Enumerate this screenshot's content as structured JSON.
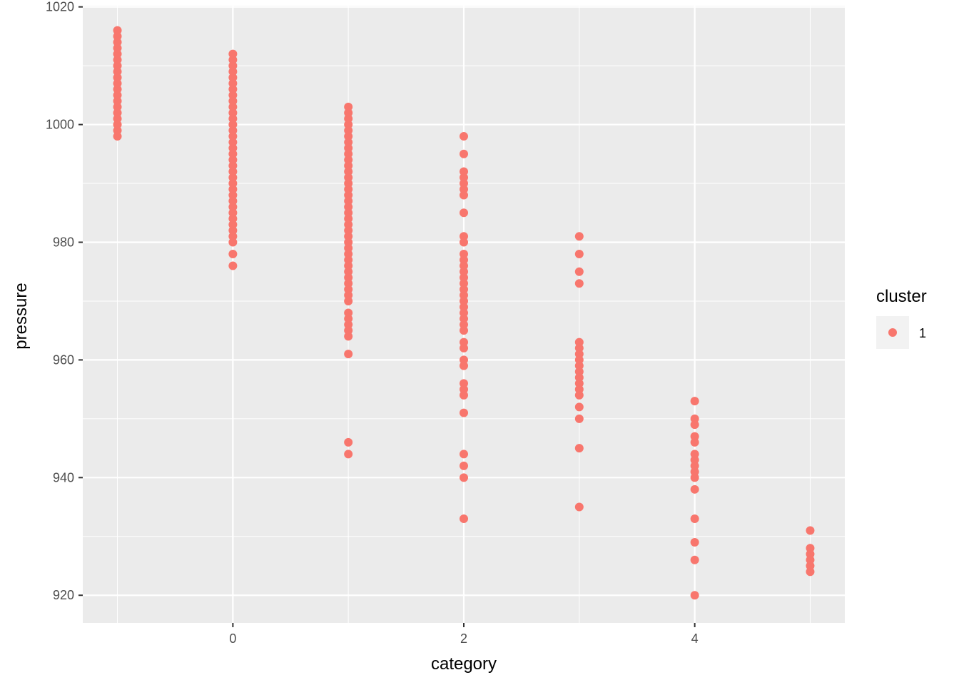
{
  "chart_data": {
    "type": "scatter",
    "xlabel": "category",
    "ylabel": "pressure",
    "xlim": [
      -1.3,
      5.3
    ],
    "ylim": [
      915.3,
      1020.2
    ],
    "x_ticks": [
      0,
      2,
      4
    ],
    "y_ticks": [
      920,
      940,
      960,
      980,
      1000,
      1020
    ],
    "grid": true,
    "legend": {
      "title": "cluster",
      "position": "right",
      "entries": [
        "1"
      ]
    },
    "series": [
      {
        "name": "1",
        "color": "#F8766D",
        "points": [
          {
            "x": -1,
            "y": 998
          },
          {
            "x": -1,
            "y": 999
          },
          {
            "x": -1,
            "y": 1000
          },
          {
            "x": -1,
            "y": 1001
          },
          {
            "x": -1,
            "y": 1002
          },
          {
            "x": -1,
            "y": 1003
          },
          {
            "x": -1,
            "y": 1004
          },
          {
            "x": -1,
            "y": 1005
          },
          {
            "x": -1,
            "y": 1006
          },
          {
            "x": -1,
            "y": 1007
          },
          {
            "x": -1,
            "y": 1008
          },
          {
            "x": -1,
            "y": 1009
          },
          {
            "x": -1,
            "y": 1010
          },
          {
            "x": -1,
            "y": 1011
          },
          {
            "x": -1,
            "y": 1012
          },
          {
            "x": -1,
            "y": 1013
          },
          {
            "x": -1,
            "y": 1014
          },
          {
            "x": -1,
            "y": 1015
          },
          {
            "x": -1,
            "y": 1016
          },
          {
            "x": 0,
            "y": 976
          },
          {
            "x": 0,
            "y": 978
          },
          {
            "x": 0,
            "y": 980
          },
          {
            "x": 0,
            "y": 981
          },
          {
            "x": 0,
            "y": 982
          },
          {
            "x": 0,
            "y": 983
          },
          {
            "x": 0,
            "y": 984
          },
          {
            "x": 0,
            "y": 985
          },
          {
            "x": 0,
            "y": 986
          },
          {
            "x": 0,
            "y": 987
          },
          {
            "x": 0,
            "y": 988
          },
          {
            "x": 0,
            "y": 989
          },
          {
            "x": 0,
            "y": 990
          },
          {
            "x": 0,
            "y": 991
          },
          {
            "x": 0,
            "y": 992
          },
          {
            "x": 0,
            "y": 993
          },
          {
            "x": 0,
            "y": 994
          },
          {
            "x": 0,
            "y": 995
          },
          {
            "x": 0,
            "y": 996
          },
          {
            "x": 0,
            "y": 997
          },
          {
            "x": 0,
            "y": 998
          },
          {
            "x": 0,
            "y": 999
          },
          {
            "x": 0,
            "y": 1000
          },
          {
            "x": 0,
            "y": 1001
          },
          {
            "x": 0,
            "y": 1002
          },
          {
            "x": 0,
            "y": 1003
          },
          {
            "x": 0,
            "y": 1004
          },
          {
            "x": 0,
            "y": 1005
          },
          {
            "x": 0,
            "y": 1006
          },
          {
            "x": 0,
            "y": 1007
          },
          {
            "x": 0,
            "y": 1008
          },
          {
            "x": 0,
            "y": 1009
          },
          {
            "x": 0,
            "y": 1010
          },
          {
            "x": 0,
            "y": 1011
          },
          {
            "x": 0,
            "y": 1012
          },
          {
            "x": 1,
            "y": 944
          },
          {
            "x": 1,
            "y": 946
          },
          {
            "x": 1,
            "y": 961
          },
          {
            "x": 1,
            "y": 964
          },
          {
            "x": 1,
            "y": 965
          },
          {
            "x": 1,
            "y": 966
          },
          {
            "x": 1,
            "y": 967
          },
          {
            "x": 1,
            "y": 968
          },
          {
            "x": 1,
            "y": 970
          },
          {
            "x": 1,
            "y": 971
          },
          {
            "x": 1,
            "y": 972
          },
          {
            "x": 1,
            "y": 973
          },
          {
            "x": 1,
            "y": 974
          },
          {
            "x": 1,
            "y": 975
          },
          {
            "x": 1,
            "y": 976
          },
          {
            "x": 1,
            "y": 977
          },
          {
            "x": 1,
            "y": 978
          },
          {
            "x": 1,
            "y": 979
          },
          {
            "x": 1,
            "y": 980
          },
          {
            "x": 1,
            "y": 981
          },
          {
            "x": 1,
            "y": 982
          },
          {
            "x": 1,
            "y": 983
          },
          {
            "x": 1,
            "y": 984
          },
          {
            "x": 1,
            "y": 985
          },
          {
            "x": 1,
            "y": 986
          },
          {
            "x": 1,
            "y": 987
          },
          {
            "x": 1,
            "y": 988
          },
          {
            "x": 1,
            "y": 989
          },
          {
            "x": 1,
            "y": 990
          },
          {
            "x": 1,
            "y": 991
          },
          {
            "x": 1,
            "y": 992
          },
          {
            "x": 1,
            "y": 993
          },
          {
            "x": 1,
            "y": 994
          },
          {
            "x": 1,
            "y": 995
          },
          {
            "x": 1,
            "y": 996
          },
          {
            "x": 1,
            "y": 997
          },
          {
            "x": 1,
            "y": 998
          },
          {
            "x": 1,
            "y": 999
          },
          {
            "x": 1,
            "y": 1000
          },
          {
            "x": 1,
            "y": 1001
          },
          {
            "x": 1,
            "y": 1002
          },
          {
            "x": 1,
            "y": 1003
          },
          {
            "x": 2,
            "y": 933
          },
          {
            "x": 2,
            "y": 940
          },
          {
            "x": 2,
            "y": 942
          },
          {
            "x": 2,
            "y": 944
          },
          {
            "x": 2,
            "y": 951
          },
          {
            "x": 2,
            "y": 954
          },
          {
            "x": 2,
            "y": 955
          },
          {
            "x": 2,
            "y": 956
          },
          {
            "x": 2,
            "y": 959
          },
          {
            "x": 2,
            "y": 960
          },
          {
            "x": 2,
            "y": 962
          },
          {
            "x": 2,
            "y": 963
          },
          {
            "x": 2,
            "y": 965
          },
          {
            "x": 2,
            "y": 966
          },
          {
            "x": 2,
            "y": 967
          },
          {
            "x": 2,
            "y": 968
          },
          {
            "x": 2,
            "y": 969
          },
          {
            "x": 2,
            "y": 970
          },
          {
            "x": 2,
            "y": 971
          },
          {
            "x": 2,
            "y": 972
          },
          {
            "x": 2,
            "y": 973
          },
          {
            "x": 2,
            "y": 974
          },
          {
            "x": 2,
            "y": 975
          },
          {
            "x": 2,
            "y": 976
          },
          {
            "x": 2,
            "y": 977
          },
          {
            "x": 2,
            "y": 978
          },
          {
            "x": 2,
            "y": 980
          },
          {
            "x": 2,
            "y": 981
          },
          {
            "x": 2,
            "y": 985
          },
          {
            "x": 2,
            "y": 988
          },
          {
            "x": 2,
            "y": 989
          },
          {
            "x": 2,
            "y": 990
          },
          {
            "x": 2,
            "y": 991
          },
          {
            "x": 2,
            "y": 992
          },
          {
            "x": 2,
            "y": 995
          },
          {
            "x": 2,
            "y": 998
          },
          {
            "x": 3,
            "y": 935
          },
          {
            "x": 3,
            "y": 945
          },
          {
            "x": 3,
            "y": 950
          },
          {
            "x": 3,
            "y": 952
          },
          {
            "x": 3,
            "y": 954
          },
          {
            "x": 3,
            "y": 955
          },
          {
            "x": 3,
            "y": 956
          },
          {
            "x": 3,
            "y": 957
          },
          {
            "x": 3,
            "y": 958
          },
          {
            "x": 3,
            "y": 959
          },
          {
            "x": 3,
            "y": 960
          },
          {
            "x": 3,
            "y": 961
          },
          {
            "x": 3,
            "y": 962
          },
          {
            "x": 3,
            "y": 963
          },
          {
            "x": 3,
            "y": 973
          },
          {
            "x": 3,
            "y": 975
          },
          {
            "x": 3,
            "y": 978
          },
          {
            "x": 3,
            "y": 981
          },
          {
            "x": 4,
            "y": 920
          },
          {
            "x": 4,
            "y": 926
          },
          {
            "x": 4,
            "y": 929
          },
          {
            "x": 4,
            "y": 933
          },
          {
            "x": 4,
            "y": 938
          },
          {
            "x": 4,
            "y": 940
          },
          {
            "x": 4,
            "y": 941
          },
          {
            "x": 4,
            "y": 942
          },
          {
            "x": 4,
            "y": 943
          },
          {
            "x": 4,
            "y": 944
          },
          {
            "x": 4,
            "y": 946
          },
          {
            "x": 4,
            "y": 947
          },
          {
            "x": 4,
            "y": 949
          },
          {
            "x": 4,
            "y": 950
          },
          {
            "x": 4,
            "y": 953
          },
          {
            "x": 5,
            "y": 924
          },
          {
            "x": 5,
            "y": 925
          },
          {
            "x": 5,
            "y": 926
          },
          {
            "x": 5,
            "y": 927
          },
          {
            "x": 5,
            "y": 928
          },
          {
            "x": 5,
            "y": 931
          }
        ]
      }
    ]
  },
  "colors": {
    "panel_background": "#EBEBEB",
    "grid_major": "#FFFFFF",
    "point": "#F8766D",
    "legend_key_background": "#F2F2F2"
  }
}
